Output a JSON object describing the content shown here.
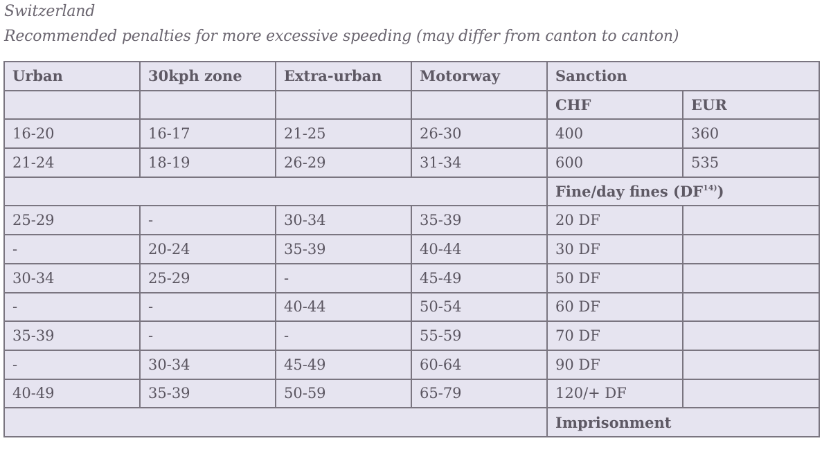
{
  "caption": {
    "country": "Switzerland",
    "subtitle": "Recommended penalties for more excessive speeding (may differ from canton to canton)"
  },
  "table": {
    "headers": {
      "urban": "Urban",
      "zone30": "30kph zone",
      "extra_urban": "Extra-urban",
      "motorway": "Motorway",
      "sanction": "Sanction"
    },
    "currency": {
      "chf": "CHF",
      "eur": "EUR"
    },
    "fine_rows": [
      {
        "urban": "16-20",
        "zone30": "16-17",
        "extra_urban": "21-25",
        "motorway": "26-30",
        "chf": "400",
        "eur": "360"
      },
      {
        "urban": "21-24",
        "zone30": "18-19",
        "extra_urban": "26-29",
        "motorway": "31-34",
        "chf": "600",
        "eur": "535"
      }
    ],
    "day_fines_label": "Fine/day fines (DF",
    "day_fines_footnote": "14)",
    "day_fines_label_close": ")",
    "day_fine_rows": [
      {
        "urban": "25-29",
        "zone30": "-",
        "extra_urban": "30-34",
        "motorway": "35-39",
        "sanction": "20 DF"
      },
      {
        "urban": "-",
        "zone30": "20-24",
        "extra_urban": "35-39",
        "motorway": "40-44",
        "sanction": "30 DF"
      },
      {
        "urban": "30-34",
        "zone30": "25-29",
        "extra_urban": "-",
        "motorway": "45-49",
        "sanction": "50 DF"
      },
      {
        "urban": "-",
        "zone30": "-",
        "extra_urban": "40-44",
        "motorway": "50-54",
        "sanction": "60 DF"
      },
      {
        "urban": "35-39",
        "zone30": "-",
        "extra_urban": "-",
        "motorway": "55-59",
        "sanction": "70 DF"
      },
      {
        "urban": "-",
        "zone30": "30-34",
        "extra_urban": "45-49",
        "motorway": "60-64",
        "sanction": "90 DF"
      },
      {
        "urban": "40-49",
        "zone30": "35-39",
        "extra_urban": "50-59",
        "motorway": "65-79",
        "sanction": "120/+ DF"
      }
    ],
    "imprisonment_label": "Imprisonment"
  }
}
